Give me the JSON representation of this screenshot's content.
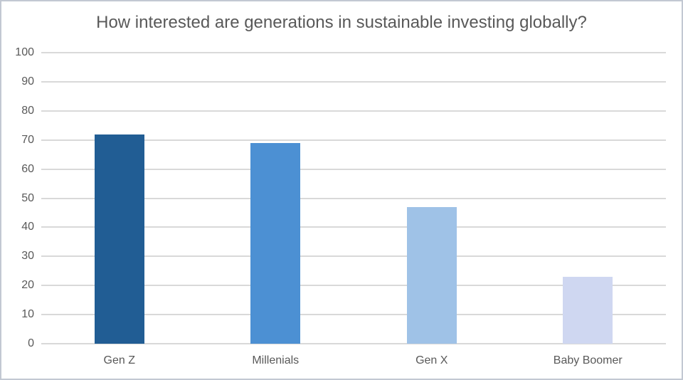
{
  "page": {
    "background": "#ffffff",
    "border_color": "#c2c8d2"
  },
  "chart_data": {
    "type": "bar",
    "title": "How interested are generations in sustainable investing globally?",
    "categories": [
      "Gen Z",
      "Millenials",
      "Gen X",
      "Baby Boomer"
    ],
    "values": [
      72,
      69,
      47,
      23
    ],
    "bar_colors": [
      "#215d94",
      "#4c90d3",
      "#9fc2e7",
      "#cfd7f1"
    ],
    "xlabel": "",
    "ylabel": "",
    "ylim": [
      0,
      100
    ],
    "ytick_step": 10,
    "ytick_labels": [
      "0",
      "10",
      "20",
      "30",
      "40",
      "50",
      "60",
      "70",
      "80",
      "90",
      "100"
    ],
    "grid": true,
    "legend": "none",
    "styles": {
      "title_color": "#595959",
      "tick_label_color": "#595959",
      "gridline_color": "#d9d9d9"
    }
  }
}
